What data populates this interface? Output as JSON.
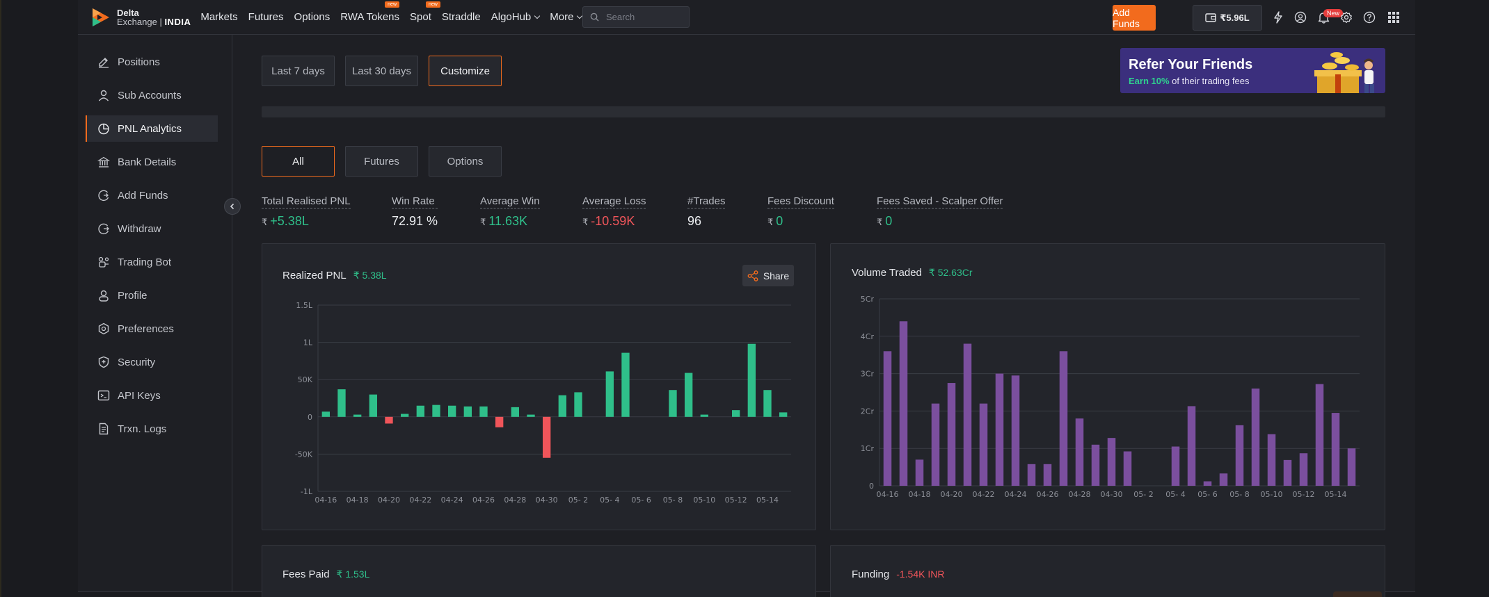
{
  "header": {
    "logo_line1": "Delta",
    "logo_line2_a": "Exchange",
    "logo_line2_b": "INDIA",
    "nav": [
      {
        "label": "Markets",
        "badge": ""
      },
      {
        "label": "Futures",
        "badge": ""
      },
      {
        "label": "Options",
        "badge": ""
      },
      {
        "label": "RWA Tokens",
        "badge": "new"
      },
      {
        "label": "Spot",
        "badge": "new"
      },
      {
        "label": "Straddle",
        "badge": ""
      },
      {
        "label": "AlgoHub",
        "badge": "",
        "dropdown": true
      },
      {
        "label": "More",
        "badge": "",
        "dropdown": true
      }
    ],
    "search_placeholder": "Search",
    "add_funds_label": "Add Funds",
    "wallet_balance": "₹5.96L",
    "notification_badge": "New"
  },
  "sidebar": {
    "items": [
      {
        "label": "Positions",
        "icon": "edit-icon",
        "active": false
      },
      {
        "label": "Sub Accounts",
        "icon": "user-icon",
        "active": false
      },
      {
        "label": "PNL Analytics",
        "icon": "pie-chart-icon",
        "active": true
      },
      {
        "label": "Bank Details",
        "icon": "bank-icon",
        "active": false
      },
      {
        "label": "Add Funds",
        "icon": "add-funds-icon",
        "active": false
      },
      {
        "label": "Withdraw",
        "icon": "withdraw-icon",
        "active": false
      },
      {
        "label": "Trading Bot",
        "icon": "bot-icon",
        "active": false
      },
      {
        "label": "Profile",
        "icon": "profile-icon",
        "active": false
      },
      {
        "label": "Preferences",
        "icon": "gear-icon",
        "active": false
      },
      {
        "label": "Security",
        "icon": "shield-icon",
        "active": false
      },
      {
        "label": "API Keys",
        "icon": "terminal-icon",
        "active": false
      },
      {
        "label": "Trxn. Logs",
        "icon": "document-icon",
        "active": false
      }
    ]
  },
  "date_filters": [
    "Last 7 days",
    "Last 30 days",
    "Customize"
  ],
  "date_filter_selected": "Customize",
  "banner": {
    "title": "Refer Your Friends",
    "highlight": "Earn 10%",
    "subtitle": "of their trading fees"
  },
  "product_filters": [
    "All",
    "Futures",
    "Options"
  ],
  "product_filter_selected": "All",
  "stats": [
    {
      "label": "Total Realised PNL",
      "currency": "₹",
      "value": "+5.38L",
      "tone": "green"
    },
    {
      "label": "Win Rate",
      "currency": "",
      "value": "72.91 %",
      "tone": "white"
    },
    {
      "label": "Average Win",
      "currency": "₹",
      "value": "11.63K",
      "tone": "green"
    },
    {
      "label": "Average Loss",
      "currency": "₹",
      "value": "-10.59K",
      "tone": "red"
    },
    {
      "label": "#Trades",
      "currency": "",
      "value": "96",
      "tone": "white"
    },
    {
      "label": "Fees Discount",
      "currency": "₹",
      "value": "0",
      "tone": "green"
    },
    {
      "label": "Fees Saved - Scalper Offer",
      "currency": "₹",
      "value": "0",
      "tone": "green"
    }
  ],
  "cards": {
    "realized_pnl": {
      "title": "Realized PNL",
      "amount": "₹ 5.38L",
      "share_label": "Share"
    },
    "volume_traded": {
      "title": "Volume Traded",
      "amount": "₹ 52.63Cr"
    },
    "fees_paid": {
      "title": "Fees Paid",
      "amount": "₹ 1.53L"
    },
    "funding": {
      "title": "Funding",
      "amount": "-1.54K INR"
    }
  },
  "colors": {
    "accent": "#f26b1d",
    "positive": "#2fbf8a",
    "negative": "#f0555a",
    "volume_bar": "#7b4f9e"
  },
  "chart_data": [
    {
      "type": "bar",
      "title": "Realized PNL",
      "x_tick_labels": [
        "04-16",
        "04-18",
        "04-20",
        "04-22",
        "04-24",
        "04-26",
        "04-28",
        "04-30",
        "05- 2",
        "05- 4",
        "05- 6",
        "05- 8",
        "05-10",
        "05-12",
        "05-14"
      ],
      "y_tick_labels": [
        "1.5L",
        "1L",
        "50K",
        "0",
        "-50K",
        "-1L"
      ],
      "ylim": [
        -100000,
        150000
      ],
      "values": [
        7000,
        37000,
        3000,
        30000,
        -9000,
        4000,
        15000,
        16000,
        15000,
        14000,
        14000,
        -14000,
        13000,
        3000,
        -55000,
        29000,
        33000,
        0,
        61000,
        86000,
        0,
        0,
        36000,
        59000,
        3000,
        0,
        9000,
        98000,
        36000,
        6000
      ],
      "positive_color": "#2fbf8a",
      "negative_color": "#f0555a",
      "grid": true
    },
    {
      "type": "bar",
      "title": "Volume Traded",
      "x_tick_labels": [
        "04-16",
        "04-18",
        "04-20",
        "04-22",
        "04-24",
        "04-26",
        "04-28",
        "04-30",
        "05- 2",
        "05- 4",
        "05- 6",
        "05- 8",
        "05-10",
        "05-12",
        "05-14"
      ],
      "y_tick_labels": [
        "5Cr",
        "4Cr",
        "3Cr",
        "2Cr",
        "1Cr",
        "0"
      ],
      "ylim": [
        0,
        5
      ],
      "values": [
        3.6,
        4.4,
        0.7,
        2.2,
        2.75,
        3.8,
        2.2,
        3.0,
        2.95,
        0.58,
        0.58,
        3.6,
        1.8,
        1.1,
        1.28,
        0.92,
        0,
        0,
        1.05,
        2.13,
        0.12,
        0.33,
        1.62,
        2.6,
        1.38,
        0.69,
        0.87,
        2.72,
        1.95,
        1.0
      ],
      "color": "#7b4f9e",
      "grid": true
    }
  ]
}
